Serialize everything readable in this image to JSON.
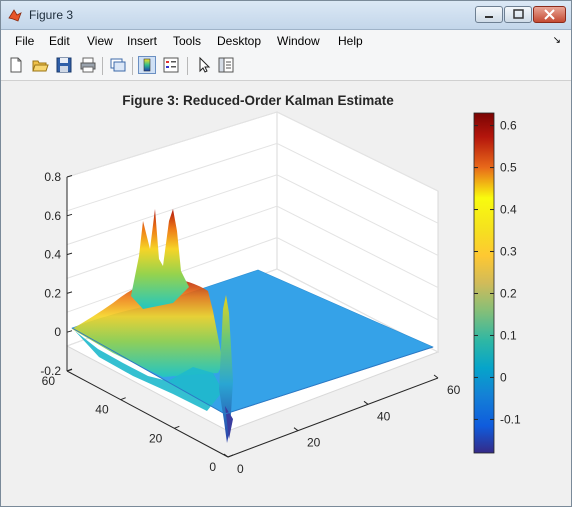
{
  "window": {
    "title": "Figure 3",
    "icon": "matlab-icon",
    "controls": [
      "minimize-icon",
      "maximize-icon",
      "close-icon"
    ]
  },
  "menu": {
    "items": [
      "File",
      "Edit",
      "View",
      "Insert",
      "Tools",
      "Desktop",
      "Window",
      "Help"
    ],
    "dock_glyph": "↘"
  },
  "toolbar": {
    "icons": [
      "new-figure-icon",
      "open-file-icon",
      "save-icon",
      "print-icon",
      "link-plot-icon",
      "insert-colorbar-icon",
      "insert-legend-icon",
      "edit-plot-icon",
      "property-inspector-icon"
    ]
  },
  "chart_data": {
    "type": "surface",
    "title": "Figure 3: Reduced-Order Kalman Estimate",
    "xlabel": "",
    "ylabel": "",
    "zlabel": "",
    "xlim": [
      0,
      60
    ],
    "ylim": [
      0,
      60
    ],
    "zlim": [
      -0.2,
      0.8
    ],
    "x_ticks": [
      0,
      20,
      40,
      60
    ],
    "y_ticks": [
      0,
      20,
      40,
      60
    ],
    "z_ticks": [
      -0.2,
      0,
      0.2,
      0.4,
      0.6,
      0.8
    ],
    "z_tick_labels": [
      "-0.2",
      "0",
      "0.2",
      "0.4",
      "0.6",
      "0.8"
    ],
    "grid": true,
    "colormap": "parula",
    "colorbar": {
      "min": -0.18,
      "max": 0.63,
      "ticks": [
        -0.1,
        0,
        0.1,
        0.2,
        0.3,
        0.4,
        0.5,
        0.6
      ],
      "tick_labels": [
        "-0.1",
        "0",
        "0.1",
        "0.2",
        "0.3",
        "0.4",
        "0.5",
        "0.6"
      ],
      "colors": [
        "#352a87",
        "#0f5cdd",
        "#1481d6",
        "#06a4ca",
        "#2eb7a4",
        "#87bf77",
        "#d1bb59",
        "#fec832",
        "#f5e21e",
        "#f9fb0e",
        "#e8691a",
        "#b4150c",
        "#7a0403"
      ]
    },
    "surface_description_values": {
      "baseline": 0,
      "peak_region_x": [
        0,
        12
      ],
      "peak_region_y": [
        30,
        60
      ],
      "max_peak": 0.63,
      "min_trough": -0.18
    }
  }
}
